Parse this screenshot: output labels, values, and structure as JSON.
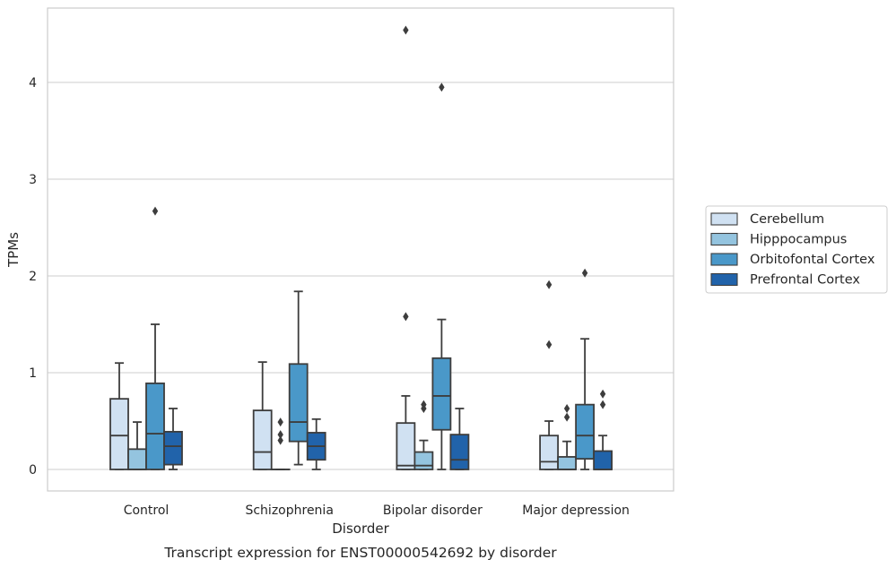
{
  "chart_data": {
    "type": "box",
    "title": "Transcript expression for ENST00000542692 by disorder",
    "xlabel": "Disorder",
    "ylabel": "TPMs",
    "ylim": [
      -0.22,
      4.8
    ],
    "yticks": [
      0,
      1,
      2,
      3,
      4
    ],
    "categories": [
      "Control",
      "Schizophrenia",
      "Bipolar disorder",
      "Major depression"
    ],
    "grid": true,
    "legend_position": "right",
    "series": [
      {
        "name": "Cerebellum",
        "color": "#d0e1f2",
        "boxes": [
          {
            "whislo": 0,
            "q1": 0,
            "med": 0.35,
            "q3": 0.73,
            "whishi": 1.1,
            "fliers": []
          },
          {
            "whislo": 0,
            "q1": 0,
            "med": 0.18,
            "q3": 0.61,
            "whishi": 1.11,
            "fliers": []
          },
          {
            "whislo": 0,
            "q1": 0,
            "med": 0.04,
            "q3": 0.48,
            "whishi": 0.76,
            "fliers": [
              1.58,
              4.54
            ]
          },
          {
            "whislo": 0,
            "q1": 0,
            "med": 0.08,
            "q3": 0.35,
            "whishi": 0.5,
            "fliers": [
              1.29,
              1.91
            ]
          }
        ]
      },
      {
        "name": "Hipppocampus",
        "color": "#94c4df",
        "boxes": [
          {
            "whislo": 0,
            "q1": 0,
            "med": 0.0,
            "q3": 0.21,
            "whishi": 0.49,
            "fliers": []
          },
          {
            "whislo": 0,
            "q1": 0,
            "med": 0.0,
            "q3": 0.0,
            "whishi": 0.0,
            "fliers": [
              0.3,
              0.36,
              0.49
            ]
          },
          {
            "whislo": 0,
            "q1": 0,
            "med": 0.04,
            "q3": 0.18,
            "whishi": 0.3,
            "fliers": [
              0.63,
              0.67
            ]
          },
          {
            "whislo": 0,
            "q1": 0,
            "med": 0.0,
            "q3": 0.13,
            "whishi": 0.29,
            "fliers": [
              0.54,
              0.63
            ]
          }
        ]
      },
      {
        "name": "Orbitofontal Cortex",
        "color": "#4a98c9",
        "boxes": [
          {
            "whislo": 0,
            "q1": 0,
            "med": 0.37,
            "q3": 0.89,
            "whishi": 1.5,
            "fliers": [
              2.67
            ]
          },
          {
            "whislo": 0.05,
            "q1": 0.29,
            "med": 0.49,
            "q3": 1.09,
            "whishi": 1.84,
            "fliers": []
          },
          {
            "whislo": 0,
            "q1": 0.41,
            "med": 0.76,
            "q3": 1.15,
            "whishi": 1.55,
            "fliers": [
              3.95
            ]
          },
          {
            "whislo": 0,
            "q1": 0.11,
            "med": 0.35,
            "q3": 0.67,
            "whishi": 1.35,
            "fliers": [
              2.03
            ]
          }
        ]
      },
      {
        "name": "Prefrontal Cortex",
        "color": "#2163aa",
        "boxes": [
          {
            "whislo": 0,
            "q1": 0.05,
            "med": 0.24,
            "q3": 0.39,
            "whishi": 0.63,
            "fliers": []
          },
          {
            "whislo": 0,
            "q1": 0.1,
            "med": 0.24,
            "q3": 0.38,
            "whishi": 0.52,
            "fliers": []
          },
          {
            "whislo": 0,
            "q1": 0,
            "med": 0.1,
            "q3": 0.36,
            "whishi": 0.63,
            "fliers": []
          },
          {
            "whislo": 0,
            "q1": 0,
            "med": 0.0,
            "q3": 0.19,
            "whishi": 0.35,
            "fliers": [
              0.67,
              0.78
            ]
          }
        ]
      }
    ]
  }
}
